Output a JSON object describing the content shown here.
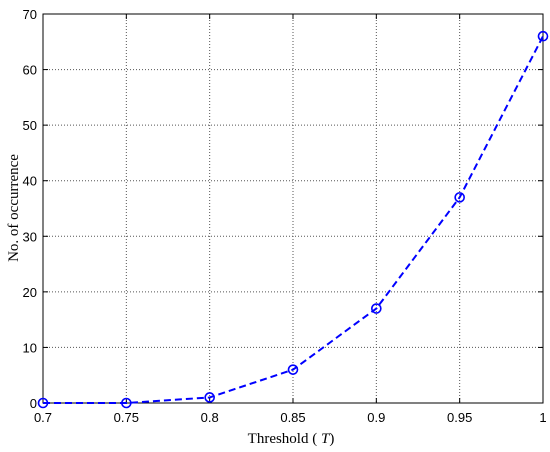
{
  "chart_data": {
    "type": "line",
    "xlabel_prefix": "Threshold ( ",
    "xlabel_symbol": "T",
    "xlabel_suffix": ")",
    "ylabel": "No. of occurrence",
    "xlim": [
      0.7,
      1.0
    ],
    "ylim": [
      0,
      70
    ],
    "x_ticks": [
      "0.7",
      "0.75",
      "0.8",
      "0.85",
      "0.9",
      "0.95",
      "1"
    ],
    "y_ticks": [
      "0",
      "10",
      "20",
      "30",
      "40",
      "50",
      "60",
      "70"
    ],
    "grid": true,
    "series": [
      {
        "x": [
          0.7,
          0.75,
          0.8,
          0.85,
          0.9,
          0.95,
          1.0
        ],
        "y": [
          0,
          0,
          1,
          6,
          17,
          37,
          66
        ],
        "color": "#0000ff",
        "line_style": "dashed",
        "marker": "circle"
      }
    ]
  }
}
